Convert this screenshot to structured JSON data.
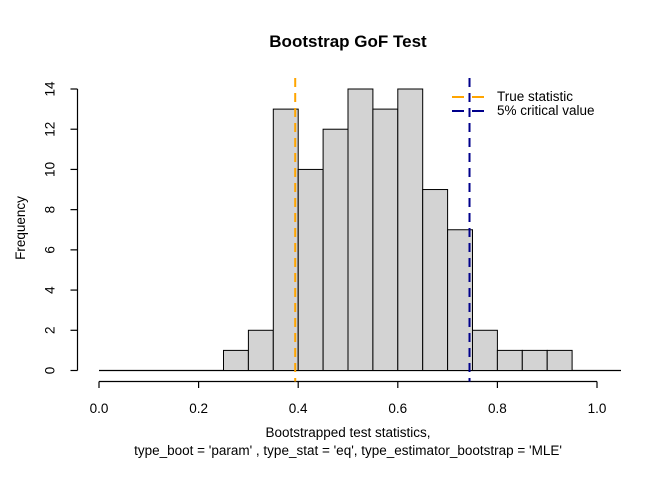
{
  "chart_data": {
    "type": "bar",
    "subtype": "histogram",
    "title": "Bootstrap GoF Test",
    "ylabel": "Frequency",
    "xlabel_line1": "Bootstrapped test statistics,",
    "xlabel_line2": "type_boot = 'param' , type_stat = 'eq', type_estimator_bootstrap = 'MLE'",
    "xlim": [
      0,
      1
    ],
    "ylim": [
      0,
      14
    ],
    "x_ticks": [
      0,
      0.2,
      0.4,
      0.6,
      0.8,
      1.0
    ],
    "x_tick_labels": [
      "0.0",
      "0.2",
      "0.4",
      "0.6",
      "0.8",
      "1.0"
    ],
    "y_ticks": [
      0,
      2,
      4,
      6,
      8,
      10,
      12,
      14
    ],
    "y_tick_labels": [
      "0",
      "2",
      "4",
      "6",
      "8",
      "10",
      "12",
      "14"
    ],
    "bin_start": 0.25,
    "bin_width": 0.05,
    "bin_edges": [
      0.25,
      0.3,
      0.35,
      0.4,
      0.45,
      0.5,
      0.55,
      0.6,
      0.65,
      0.7,
      0.75,
      0.8,
      0.85,
      0.9,
      0.95
    ],
    "counts": [
      1,
      2,
      13,
      10,
      12,
      14,
      13,
      14,
      9,
      7,
      2,
      1,
      1,
      1
    ],
    "bar_fill": "#d3d3d3",
    "bar_stroke": "#000000",
    "grid": false,
    "legend_position": "topright",
    "vlines": [
      {
        "label": "True statistic",
        "x": 0.394,
        "color": "#ffa500",
        "style": "dashed"
      },
      {
        "label": "5% critical value",
        "x": 0.744,
        "color": "#00008b",
        "style": "dashed"
      }
    ]
  }
}
